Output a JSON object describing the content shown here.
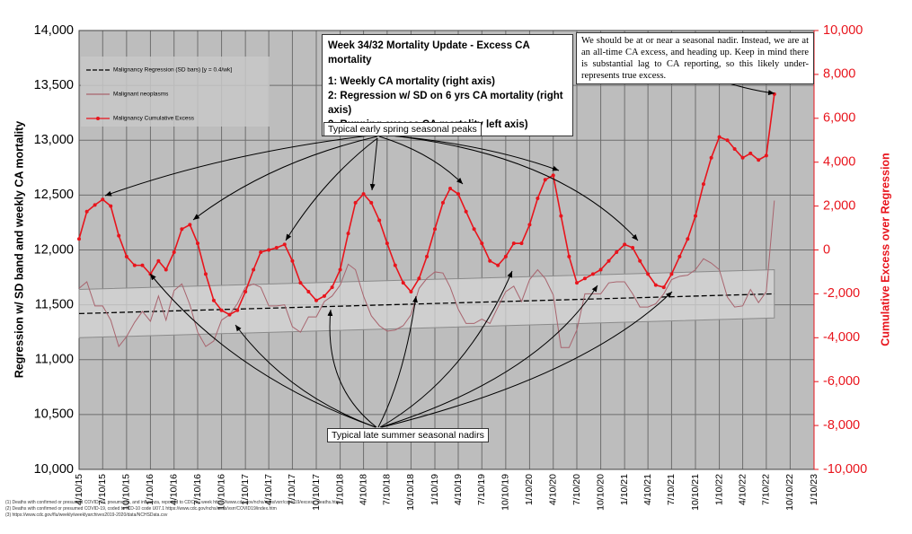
{
  "chart_data": {
    "type": "line",
    "title": "Week 34/32 Mortality Update - Excess CA mortality",
    "title_lines": [
      "1: Weekly CA mortality (right axis)",
      "2: Regression w/ SD on 6 yrs CA mortality (right axis)",
      "3: Running excess CA mortality left axis)"
    ],
    "note": "We should be at or near a seasonal nadir. Instead, we are at an all-time CA excess, and heading up. Keep in mind there is substantial lag to CA reporting, so this likely under-represents true excess.",
    "peaks_label": "Typical early spring seasonal peaks",
    "nadirs_label": "Typical late summer seasonal nadirs",
    "y_label": "Regression w/ SD band and weekly CA mortality",
    "y2_label": "Cumulative Excess over Regression",
    "footnotes": [
      "(1) Deaths with confirmed or presumed COVID-19, pneumonia, and influenza, reported to CDC by week https://www.cdc.gov/nchs/nvss/vsrr/covid19/excess_deaths.htm",
      "(2) Deaths with confirmed or presumed COVID-19, coded to ICD-10 code U07.1 https://www.cdc.gov/nchs/nvss/vsrr/COVID19/index.htm",
      "(3) https://www.cdc.gov/flu/weekly/weeklyarchives2019-2020/data/NCHSData.csv"
    ],
    "legend": "upper left",
    "grid": true,
    "x": [
      "4/10/15",
      "5/10/15",
      "6/10/15",
      "7/10/15",
      "8/10/15",
      "9/10/15",
      "10/10/15",
      "11/10/15",
      "12/10/15",
      "1/10/16",
      "2/10/16",
      "3/10/16",
      "4/10/16",
      "5/10/16",
      "6/10/16",
      "7/10/16",
      "8/10/16",
      "9/10/16",
      "10/10/16",
      "11/10/16",
      "12/10/16",
      "1/10/17",
      "2/10/17",
      "3/10/17",
      "4/10/17",
      "5/10/17",
      "6/10/17",
      "7/10/17",
      "8/10/17",
      "9/10/17",
      "10/10/17",
      "11/10/17",
      "12/10/17",
      "1/10/18",
      "2/10/18",
      "3/10/18",
      "4/10/18",
      "5/10/18",
      "6/10/18",
      "7/10/18",
      "8/10/18",
      "9/10/18",
      "10/10/18",
      "11/10/18",
      "12/10/18",
      "1/10/19",
      "2/10/19",
      "3/10/19",
      "4/10/19",
      "5/10/19",
      "6/10/19",
      "7/10/19",
      "8/10/19",
      "9/10/19",
      "10/10/19",
      "11/10/19",
      "12/10/19",
      "1/10/20",
      "2/10/20",
      "3/10/20",
      "4/10/20",
      "5/10/20",
      "6/10/20",
      "7/10/20",
      "8/10/20",
      "9/10/20",
      "10/10/20",
      "11/10/20",
      "12/10/20",
      "1/10/21",
      "2/10/21",
      "3/10/21",
      "4/10/21",
      "5/10/21",
      "6/10/21",
      "7/10/21",
      "8/10/21",
      "9/10/21",
      "10/10/21",
      "11/10/21",
      "12/10/21",
      "1/10/22",
      "2/10/22",
      "3/10/22",
      "4/10/22",
      "5/10/22",
      "6/10/22",
      "7/10/22",
      "8/10/22"
    ],
    "series": [
      {
        "name": "Malignancy Regression (SD bars) [y = 0.4/wk]",
        "color": "#000000",
        "dashed": true,
        "x": [
          "4/10/15",
          "8/10/22"
        ],
        "values": [
          11420,
          11600
        ],
        "sd_lower": [
          11200,
          11380
        ],
        "sd_upper": [
          11640,
          11820
        ],
        "band_color": "#d6d6d6"
      },
      {
        "name": "Malignant neoplasms",
        "color": "#a8646e",
        "values": [
          11650,
          11710,
          11490,
          11490,
          11360,
          11120,
          11210,
          11340,
          11440,
          11350,
          11580,
          11360,
          11630,
          11690,
          11500,
          11250,
          11120,
          11170,
          11360,
          11410,
          11510,
          11660,
          11690,
          11660,
          11490,
          11490,
          11500,
          11300,
          11250,
          11390,
          11390,
          11530,
          11580,
          11680,
          11870,
          11820,
          11580,
          11400,
          11310,
          11260,
          11270,
          11310,
          11410,
          11650,
          11740,
          11800,
          11790,
          11660,
          11460,
          11330,
          11330,
          11370,
          11330,
          11480,
          11620,
          11670,
          11530,
          11730,
          11820,
          11740,
          11590,
          11110,
          11110,
          11270,
          11600,
          11600,
          11600,
          11700,
          11710,
          11710,
          11600,
          11480,
          11480,
          11510,
          11600,
          11730,
          11760,
          11770,
          11820,
          11920,
          11880,
          11820,
          11570,
          11480,
          11490,
          11640,
          11520,
          11620,
          12450
        ]
      },
      {
        "name": "Malignancy Cumulative Excess",
        "color": "#e8141c",
        "axis": "y2",
        "markers": true,
        "values": [
          500,
          1750,
          2050,
          2300,
          2000,
          650,
          -300,
          -700,
          -700,
          -1100,
          -500,
          -900,
          -100,
          950,
          1150,
          300,
          -1100,
          -2300,
          -2750,
          -2950,
          -2750,
          -1900,
          -900,
          -100,
          0,
          100,
          250,
          -500,
          -1500,
          -1900,
          -2300,
          -2100,
          -1700,
          -900,
          750,
          2150,
          2550,
          2150,
          1350,
          300,
          -700,
          -1500,
          -1900,
          -1300,
          -300,
          950,
          2150,
          2800,
          2550,
          1750,
          950,
          300,
          -500,
          -700,
          -300,
          300,
          300,
          1150,
          2350,
          3200,
          3400,
          1550,
          -300,
          -1500,
          -1300,
          -1100,
          -900,
          -500,
          -100,
          250,
          100,
          -500,
          -1100,
          -1600,
          -1700,
          -1100,
          -300,
          500,
          1550,
          3000,
          4200,
          5150,
          5000,
          4600,
          4200,
          4400,
          4100,
          4300,
          7100
        ]
      }
    ],
    "xlim": [
      "4/10/15",
      "1/10/23"
    ],
    "xticks": [
      "4/10/15",
      "7/10/15",
      "10/10/15",
      "1/10/16",
      "4/10/16",
      "7/10/16",
      "10/10/16",
      "1/10/17",
      "4/10/17",
      "7/10/17",
      "10/10/17",
      "1/10/18",
      "4/10/18",
      "7/10/18",
      "10/10/18",
      "1/10/19",
      "4/10/19",
      "7/10/19",
      "10/10/19",
      "1/10/20",
      "4/10/20",
      "7/10/20",
      "10/10/20",
      "1/10/21",
      "4/10/21",
      "7/10/21",
      "10/10/21",
      "1/10/22",
      "4/10/22",
      "7/10/22",
      "10/10/22",
      "1/10/23"
    ],
    "ylim": [
      10000,
      14000
    ],
    "yticks": [
      {
        "value": 10000,
        "label": "10,000"
      },
      {
        "value": 10500,
        "label": "10,500"
      },
      {
        "value": 11000,
        "label": "11,000"
      },
      {
        "value": 11500,
        "label": "11,500"
      },
      {
        "value": 12000,
        "label": "12,000"
      },
      {
        "value": 12500,
        "label": "12,500"
      },
      {
        "value": 13000,
        "label": "13,000"
      },
      {
        "value": 13500,
        "label": "13,500"
      },
      {
        "value": 14000,
        "label": "14,000"
      }
    ],
    "y2lim": [
      -10000,
      10000
    ],
    "y2ticks": [
      {
        "value": -10000,
        "label": "-10,000"
      },
      {
        "value": -8000,
        "label": "-8,000"
      },
      {
        "value": -6000,
        "label": "-6,000"
      },
      {
        "value": -4000,
        "label": "-4,000"
      },
      {
        "value": -2000,
        "label": "-2,000"
      },
      0,
      {
        "value": 2000,
        "label": "2,000"
      },
      {
        "value": 4000,
        "label": "4,000"
      },
      {
        "value": 6000,
        "label": "6,000"
      },
      {
        "value": 8000,
        "label": "8,000"
      },
      {
        "value": 10000,
        "label": "10,000"
      }
    ],
    "y2_color": "#e8141c"
  }
}
